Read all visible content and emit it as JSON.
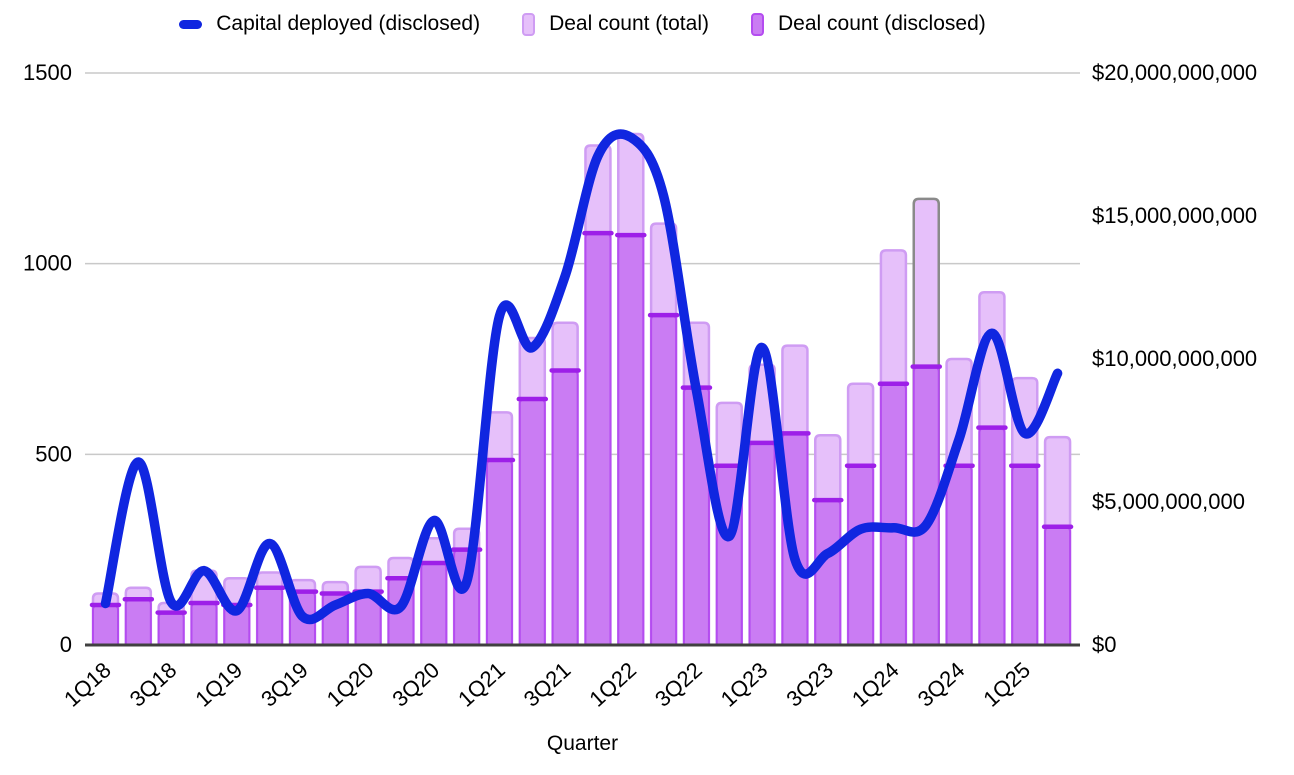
{
  "legend": {
    "items": [
      {
        "label": "Capital deployed (disclosed)",
        "swatch": "line-swatch",
        "color": "#1026e0"
      },
      {
        "label": "Deal count (total)",
        "swatch": "bar-swatch",
        "fill": "#e6c0fa",
        "stroke": "#cf9cf3"
      },
      {
        "label": "Deal count (disclosed)",
        "swatch": "bar-swatch",
        "fill": "#ca7cf3",
        "stroke": "#b44cf0"
      }
    ]
  },
  "chart_data": {
    "type": "combo-bar-line",
    "title": "",
    "x_axis": {
      "label": "Quarter",
      "tick_labels": [
        "1Q18",
        "3Q18",
        "1Q19",
        "3Q19",
        "1Q20",
        "3Q20",
        "1Q21",
        "3Q21",
        "1Q22",
        "3Q22",
        "1Q23",
        "3Q23",
        "1Q24",
        "3Q24",
        "1Q25"
      ]
    },
    "categories": [
      "1Q18",
      "2Q18",
      "3Q18",
      "4Q18",
      "1Q19",
      "2Q19",
      "3Q19",
      "4Q19",
      "1Q20",
      "2Q20",
      "3Q20",
      "4Q20",
      "1Q21",
      "2Q21",
      "3Q21",
      "4Q21",
      "1Q22",
      "2Q22",
      "3Q22",
      "4Q22",
      "1Q23",
      "2Q23",
      "3Q23",
      "4Q23",
      "1Q24",
      "2Q24",
      "3Q24",
      "4Q24",
      "1Q25",
      "2Q25"
    ],
    "left_axis": {
      "ticks": [
        0,
        500,
        1000,
        1500
      ],
      "range": [
        0,
        1500
      ],
      "grid": true
    },
    "right_axis": {
      "ticks_usd": [
        0,
        5000000000,
        10000000000,
        15000000000,
        20000000000
      ],
      "tick_labels": [
        "$0",
        "$5,000,000,000",
        "$10,000,000,000",
        "$15,000,000,000",
        "$20,000,000,000"
      ],
      "range_usd": [
        0,
        20000000000
      ]
    },
    "series": [
      {
        "name": "Deal count (total)",
        "type": "bar",
        "axis": "left",
        "fill": "#e6c0fa",
        "stroke": "#cf9cf3",
        "values": [
          135,
          150,
          110,
          195,
          175,
          190,
          170,
          165,
          205,
          228,
          280,
          305,
          610,
          805,
          845,
          1310,
          1340,
          1105,
          845,
          635,
          735,
          785,
          550,
          685,
          1035,
          1170,
          750,
          925,
          700,
          545
        ]
      },
      {
        "name": "Deal count (disclosed)",
        "type": "bar",
        "axis": "left",
        "fill": "#ca7cf3",
        "stroke": "#b44cf0",
        "top_edge_color": "#9d1fe8",
        "values": [
          105,
          120,
          85,
          110,
          105,
          150,
          140,
          135,
          140,
          175,
          215,
          250,
          485,
          645,
          720,
          1080,
          1075,
          865,
          675,
          470,
          530,
          555,
          380,
          470,
          685,
          730,
          470,
          570,
          470,
          310
        ]
      },
      {
        "name": "Capital deployed (disclosed)",
        "type": "line",
        "axis": "right",
        "color": "#1026e0",
        "values_usd": [
          1450000000,
          6400000000,
          1500000000,
          2600000000,
          1200000000,
          3550000000,
          1000000000,
          1400000000,
          1800000000,
          1350000000,
          4350000000,
          2200000000,
          11500000000,
          10400000000,
          12900000000,
          17100000000,
          17750000000,
          15700000000,
          8900000000,
          3800000000,
          10400000000,
          3000000000,
          3200000000,
          4050000000,
          4100000000,
          4200000000,
          7200000000,
          10900000000,
          7400000000,
          9500000000
        ]
      }
    ],
    "annotations": {
      "highlighted_bar": {
        "category": "2Q24",
        "series": "Deal count (total)",
        "stroke": "#8a8a8a"
      }
    },
    "style": {
      "gridline_color": "#c9c9c9",
      "baseline_color": "#404040",
      "text_color": "#000000"
    }
  }
}
